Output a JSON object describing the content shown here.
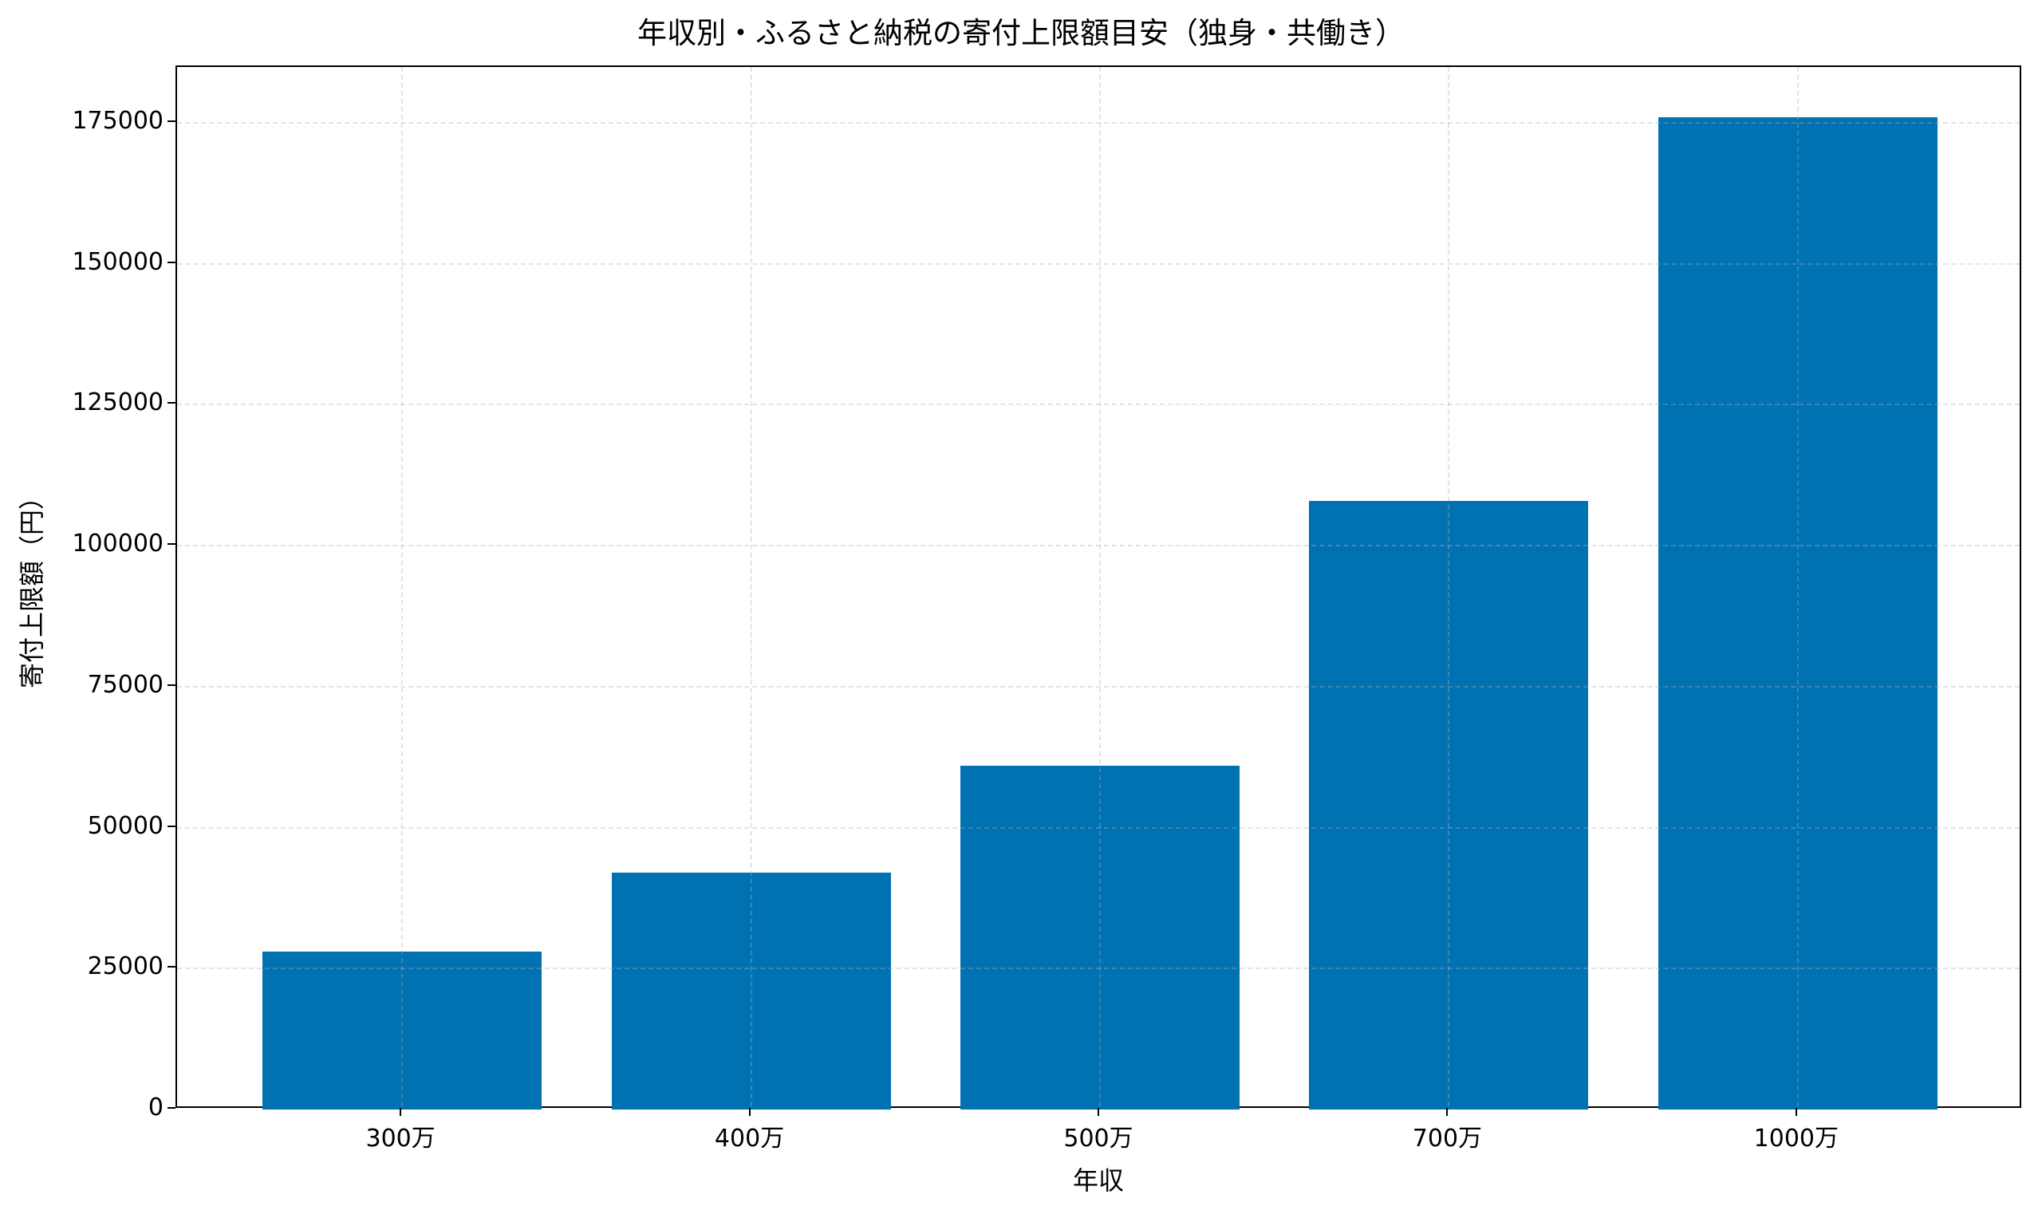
{
  "chart_data": {
    "type": "bar",
    "title": "年収別・ふるさと納税の寄付上限額目安（独身・共働き）",
    "xlabel": "年収",
    "ylabel": "寄付上限額（円）",
    "categories": [
      "300万",
      "400万",
      "500万",
      "700万",
      "1000万"
    ],
    "values": [
      28000,
      42000,
      61000,
      108000,
      176000
    ],
    "ylim": [
      0,
      184900
    ],
    "yticks": [
      0,
      25000,
      50000,
      75000,
      100000,
      125000,
      150000,
      175000
    ],
    "ytick_labels": [
      "0",
      "25000",
      "50000",
      "75000",
      "100000",
      "125000",
      "150000",
      "175000"
    ],
    "grid": true,
    "grid_style": "dashed",
    "legend": null,
    "bar_color": "#0072B2"
  }
}
